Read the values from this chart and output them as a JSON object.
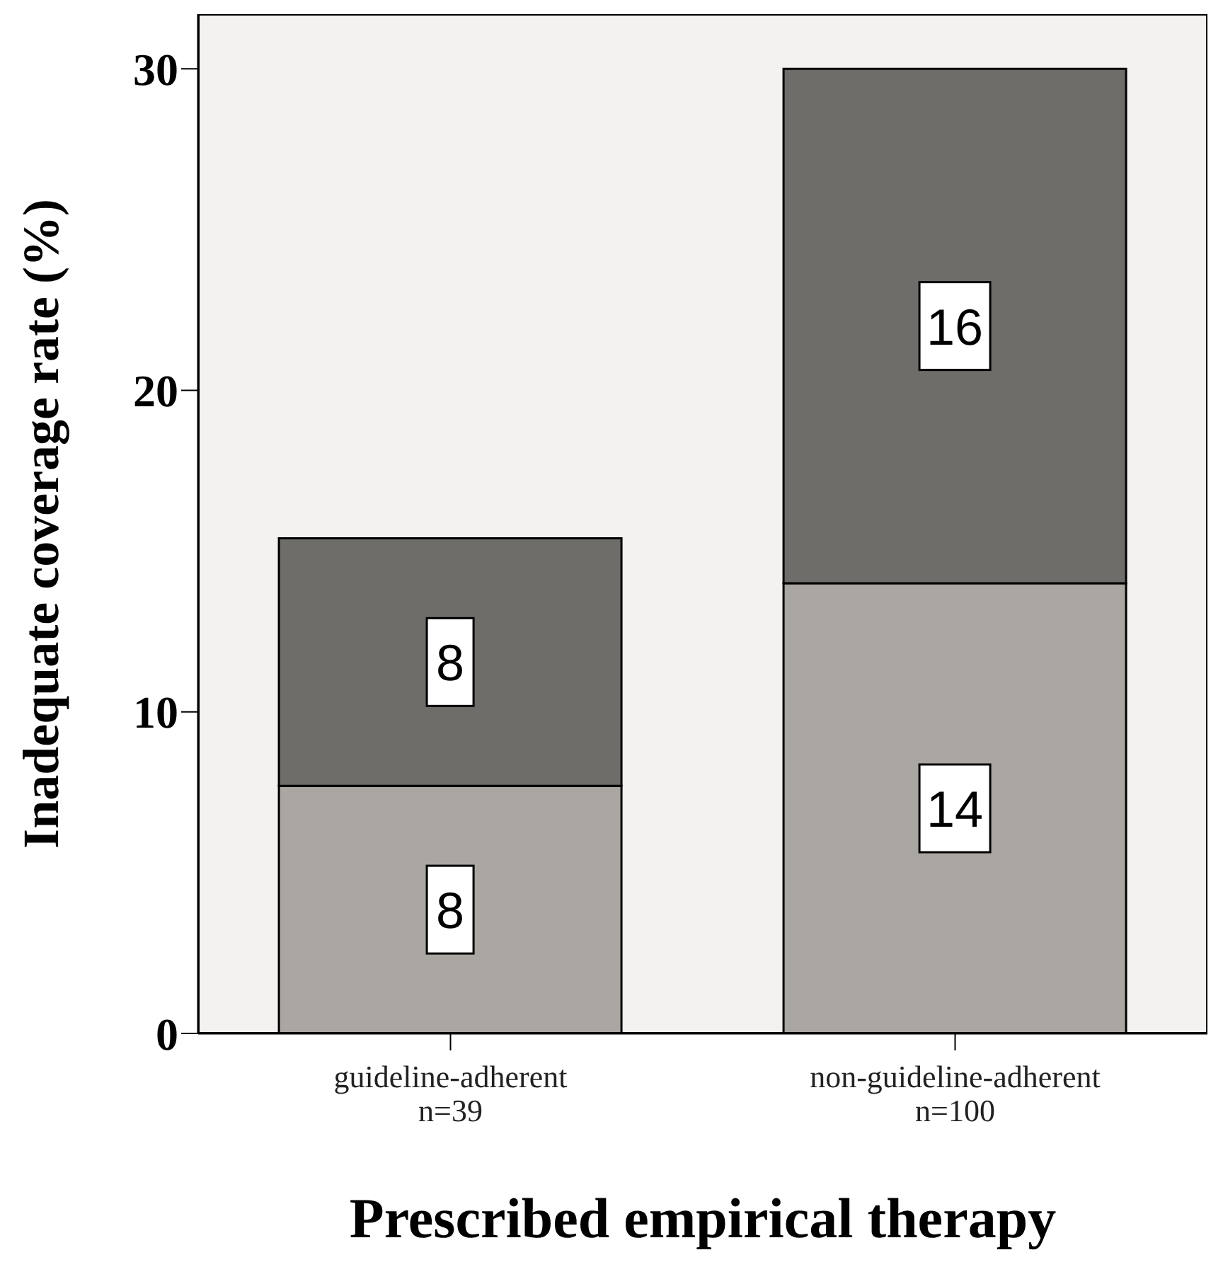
{
  "chart_data": {
    "type": "bar",
    "xlabel": "Prescribed empirical therapy",
    "ylabel": "Inadequate coverage rate (%)",
    "categories": [
      "guideline-adherent\nn=39",
      "non-guideline-adherent\nn=100"
    ],
    "stacked": true,
    "series": [
      {
        "color": "#aaa7a3",
        "values": [
          7.7,
          14
        ],
        "value_labels": [
          "8",
          "14"
        ]
      },
      {
        "color": "#6e6d69",
        "values": [
          7.7,
          16
        ],
        "value_labels": [
          "8",
          "16"
        ]
      }
    ],
    "ylim": [
      0,
      31.7
    ],
    "yticks": [
      0,
      10,
      20,
      30
    ],
    "grid": false
  }
}
